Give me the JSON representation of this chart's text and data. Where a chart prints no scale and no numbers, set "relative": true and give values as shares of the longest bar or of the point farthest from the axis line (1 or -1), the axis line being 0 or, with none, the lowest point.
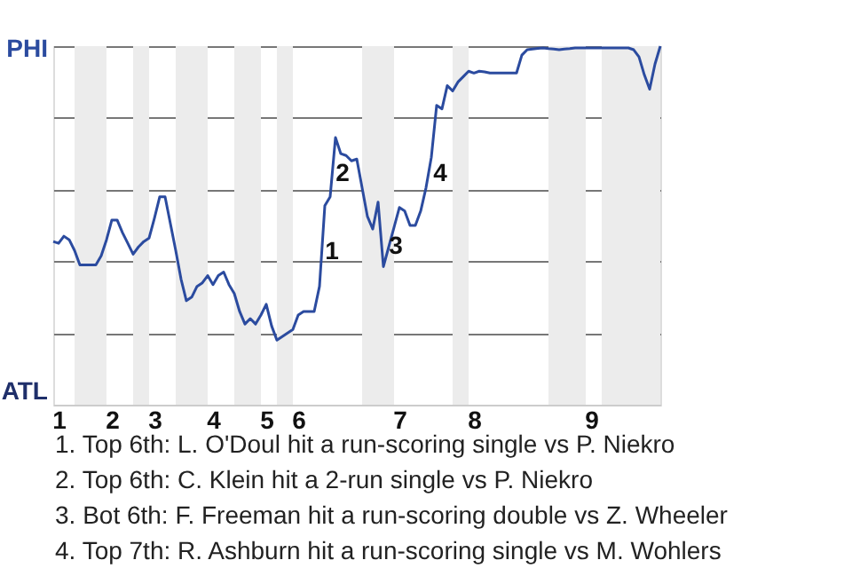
{
  "chart_data": {
    "type": "line",
    "relative": true,
    "categories": [
      null,
      "1",
      null,
      null,
      null,
      null,
      null,
      null,
      null,
      null,
      null,
      "2",
      null,
      null,
      null,
      null,
      null,
      null,
      null,
      "3",
      null,
      null,
      null,
      null,
      null,
      null,
      null,
      null,
      null,
      null,
      "4",
      null,
      null,
      null,
      null,
      null,
      null,
      null,
      null,
      null,
      "5",
      null,
      null,
      null,
      null,
      null,
      "6",
      null,
      null,
      null,
      null,
      null,
      null,
      null,
      null,
      null,
      null,
      null,
      null,
      null,
      null,
      null,
      null,
      null,
      null,
      "7",
      null,
      null,
      null,
      null,
      null,
      null,
      null,
      null,
      null,
      null,
      null,
      null,
      null,
      "8",
      null,
      null,
      null,
      null,
      null,
      null,
      null,
      null,
      null,
      null,
      null,
      null,
      null,
      null,
      null,
      null,
      null,
      null,
      null,
      null,
      null,
      "9",
      null,
      null,
      null,
      null,
      null,
      null,
      null,
      null,
      null,
      null,
      null,
      null,
      null
    ],
    "series": [
      {
        "color": "#2b4b9f",
        "values": [
          0.455,
          0.45,
          0.47,
          0.46,
          0.43,
          0.39,
          0.39,
          0.39,
          0.39,
          0.415,
          0.46,
          0.515,
          0.515,
          0.48,
          0.45,
          0.42,
          0.44,
          0.455,
          0.465,
          0.52,
          0.58,
          0.58,
          0.505,
          0.43,
          0.35,
          0.29,
          0.3,
          0.33,
          0.34,
          0.36,
          0.335,
          0.36,
          0.37,
          0.335,
          0.31,
          0.26,
          0.225,
          0.24,
          0.225,
          0.25,
          0.28,
          0.22,
          0.18,
          0.19,
          0.2,
          0.21,
          0.25,
          0.26,
          0.26,
          0.26,
          0.33,
          0.555,
          0.58,
          0.745,
          0.7,
          0.695,
          0.68,
          0.685,
          0.605,
          0.525,
          0.49,
          0.565,
          0.385,
          0.44,
          0.495,
          0.55,
          0.54,
          0.5,
          0.5,
          0.54,
          0.605,
          0.69,
          0.835,
          0.825,
          0.89,
          0.875,
          0.9,
          0.915,
          0.93,
          0.925,
          0.93,
          0.928,
          0.925,
          0.925,
          0.925,
          0.925,
          0.925,
          0.925,
          0.975,
          0.99,
          0.992,
          0.994,
          0.995,
          0.993,
          0.992,
          0.99,
          0.992,
          0.993,
          0.995,
          0.995,
          0.995,
          0.995,
          0.995,
          0.995,
          0.995,
          0.995,
          0.995,
          0.995,
          0.995,
          0.99,
          0.97,
          0.92,
          0.88,
          0.95,
          1
        ]
      }
    ],
    "grid": "y",
    "annotations": [
      "PHI",
      "ATL",
      "1",
      "2",
      "3",
      "4",
      "1. Top 6th: L. O'Doul hit a run-scoring single vs P. Niekro",
      "2. Top 6th: C. Klein hit a 2-run single vs P. Niekro",
      "3. Bot 6th: F. Freeman hit a run-scoring double vs Z. Wheeler",
      "4. Top 7th: R. Ashburn hit a run-scoring single vs M. Wohlers"
    ]
  }
}
